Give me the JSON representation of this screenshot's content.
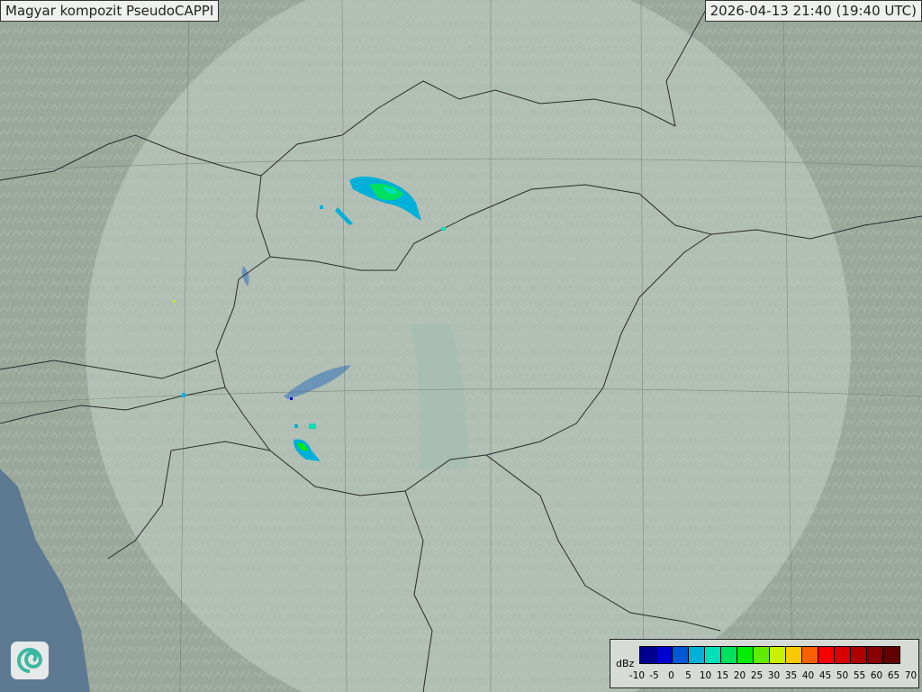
{
  "title": "Magyar kompozit  PseudoCAPPI",
  "timestamp": "2026-04-13 21:40 (19:40 UTC)",
  "legend": {
    "unit": "dBz",
    "ticks": [
      "-10",
      "-5",
      "0",
      "5",
      "10",
      "15",
      "20",
      "25",
      "30",
      "35",
      "40",
      "45",
      "50",
      "55",
      "60",
      "65",
      "70"
    ],
    "colors": [
      "#000090",
      "#0000d0",
      "#0058d8",
      "#00b0d8",
      "#00e0b8",
      "#00e060",
      "#00ec00",
      "#60ec00",
      "#c8f000",
      "#f8c800",
      "#f86000",
      "#f80000",
      "#d80000",
      "#b00000",
      "#880000",
      "#600000"
    ]
  },
  "logo": {
    "icon": "swirl-logo-icon"
  },
  "map_colors": {
    "terrain": "#9aa89c",
    "coverage": "#c4d0c6",
    "sea": "#5d7a92",
    "water": "#5f8fb8",
    "border": "#2a2a2a"
  }
}
